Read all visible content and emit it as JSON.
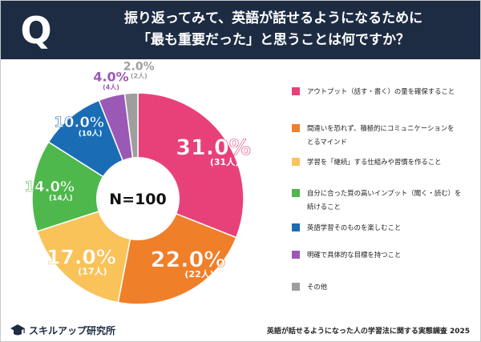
{
  "header": {
    "q_mark": "Q",
    "title_line1": "振り返ってみて、英語が話せるようになるために",
    "title_line2": "「最も重要だった」と思うことは何ですか？"
  },
  "chart_data": {
    "type": "pie",
    "center_label": "N=100",
    "slices": [
      {
        "label": "アウトプット（話す・書く）の量を確保すること",
        "line1": "アウトプット（話す・書く）の量を確保すること",
        "line2": "",
        "value": 31.0,
        "pct_label": "31.0%",
        "count_label": "(31人)",
        "color": "#e8417a"
      },
      {
        "label": "間違いを恐れず、積極的にコミュニケーションをとるマインド",
        "line1": "間違いを恐れず、積極的にコミュニケーションを",
        "line2": "とるマインド",
        "value": 22.0,
        "pct_label": "22.0%",
        "count_label": "(22人)",
        "color": "#f07f2a"
      },
      {
        "label": "学習を「継続」する仕組みや習慣を作ること",
        "line1": "学習を「継続」する仕組みや習慣を作ること",
        "line2": "",
        "value": 17.0,
        "pct_label": "17.0%",
        "count_label": "(17人)",
        "color": "#f9c35a"
      },
      {
        "label": "自分に合った質の高いインプット（聞く・読む）を続けること",
        "line1": "自分に合った質の高いインプット（聞く・読む）を",
        "line2": "続けること",
        "value": 14.0,
        "pct_label": "14.0%",
        "count_label": "(14人)",
        "color": "#4fb84c"
      },
      {
        "label": "英語学習そのものを楽しむこと",
        "line1": "英語学習そのものを楽しむこと",
        "line2": "",
        "value": 10.0,
        "pct_label": "10.0%",
        "count_label": "(10人)",
        "color": "#1a6db5"
      },
      {
        "label": "明確で具体的な目標を持つこと",
        "line1": "明確で具体的な目標を持つこと",
        "line2": "",
        "value": 4.0,
        "pct_label": "4.0%",
        "count_label": "(4人)",
        "color": "#9b59b6"
      },
      {
        "label": "その他",
        "line1": "その他",
        "line2": "",
        "value": 2.0,
        "pct_label": "2.0%",
        "count_label": "(2人)",
        "color": "#9e9e9e"
      }
    ]
  },
  "footer": {
    "brand": "スキルアップ研究所",
    "source": "英語が話せるようになった人の学習法に関する実態調査 2025"
  }
}
